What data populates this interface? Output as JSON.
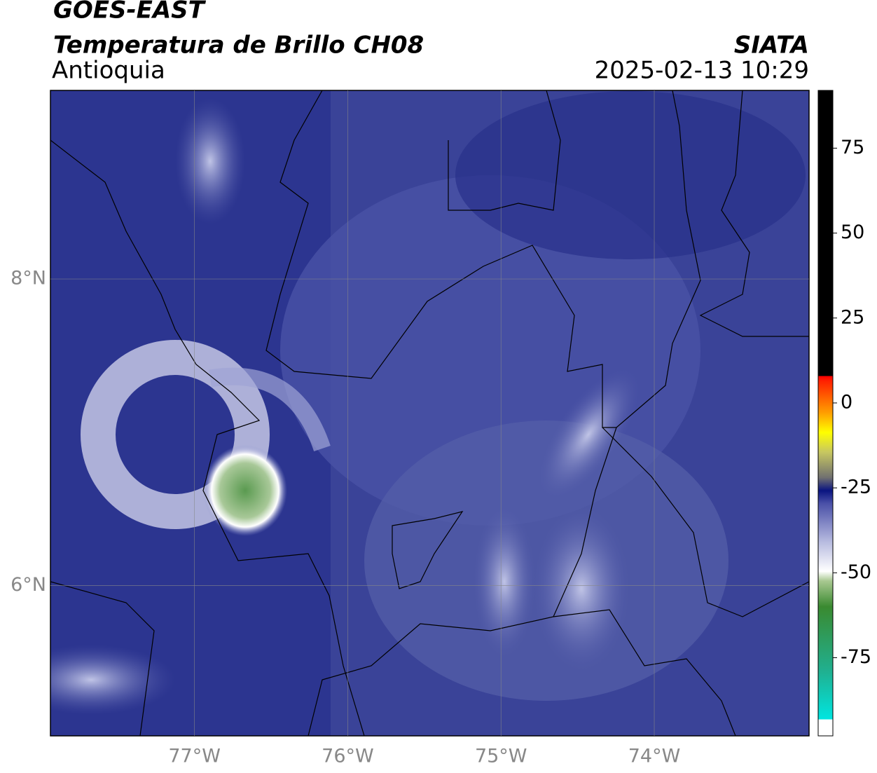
{
  "header": {
    "title": "GOES-EAST",
    "subtitle": "Temperatura de Brillo CH08",
    "region": "Antioquia",
    "source": "SIATA",
    "datetime": "2025-02-13 10:29"
  },
  "map": {
    "xlim": [
      -77.94,
      -72.99
    ],
    "ylim": [
      5.02,
      9.23
    ],
    "xticks": [
      {
        "value": -77,
        "label": "77°W"
      },
      {
        "value": -76,
        "label": "76°W"
      },
      {
        "value": -75,
        "label": "75°W"
      },
      {
        "value": -74,
        "label": "74°W"
      }
    ],
    "yticks": [
      {
        "value": 8,
        "label": "8°N"
      },
      {
        "value": 6,
        "label": "6°N"
      }
    ],
    "grid": true
  },
  "colorbar": {
    "lim": [
      -98,
      92
    ],
    "ticks": [
      75,
      50,
      25,
      0,
      -25,
      -50,
      -75
    ]
  }
}
